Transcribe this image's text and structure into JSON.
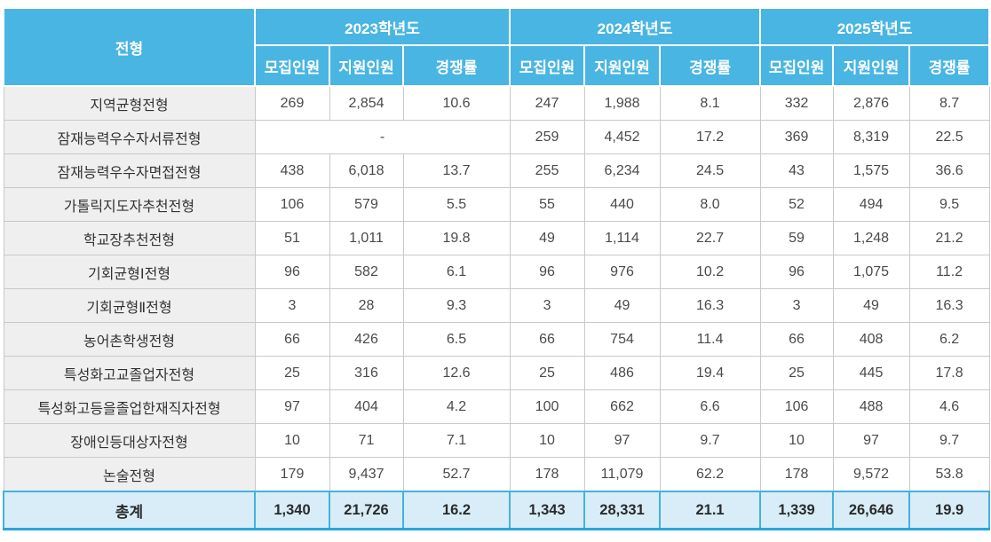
{
  "chart_data": {
    "type": "table",
    "corner_header": "전형",
    "year_groups": [
      {
        "label": "2023학년도",
        "sub_columns": [
          "모집인원",
          "지원인원",
          "경쟁률"
        ]
      },
      {
        "label": "2024학년도",
        "sub_columns": [
          "모집인원",
          "지원인원",
          "경쟁률"
        ]
      },
      {
        "label": "2025학년도",
        "sub_columns": [
          "모집인원",
          "지원인원",
          "경쟁률"
        ]
      }
    ],
    "rows": [
      {
        "label": "지역균형전형",
        "cells": [
          "269",
          "2,854",
          "10.6",
          "247",
          "1,988",
          "8.1",
          "332",
          "2,876",
          "8.7"
        ]
      },
      {
        "label": "잠재능력우수자서류전형",
        "merge": {
          "index": 0,
          "colspan": 3
        },
        "cells": [
          "-",
          "259",
          "4,452",
          "17.2",
          "369",
          "8,319",
          "22.5"
        ]
      },
      {
        "label": "잠재능력우수자면접전형",
        "cells": [
          "438",
          "6,018",
          "13.7",
          "255",
          "6,234",
          "24.5",
          "43",
          "1,575",
          "36.6"
        ]
      },
      {
        "label": "가톨릭지도자추천전형",
        "cells": [
          "106",
          "579",
          "5.5",
          "55",
          "440",
          "8.0",
          "52",
          "494",
          "9.5"
        ]
      },
      {
        "label": "학교장추천전형",
        "cells": [
          "51",
          "1,011",
          "19.8",
          "49",
          "1,114",
          "22.7",
          "59",
          "1,248",
          "21.2"
        ]
      },
      {
        "label": "기회균형Ⅰ전형",
        "cells": [
          "96",
          "582",
          "6.1",
          "96",
          "976",
          "10.2",
          "96",
          "1,075",
          "11.2"
        ]
      },
      {
        "label": "기회균형Ⅱ전형",
        "cells": [
          "3",
          "28",
          "9.3",
          "3",
          "49",
          "16.3",
          "3",
          "49",
          "16.3"
        ]
      },
      {
        "label": "농어촌학생전형",
        "cells": [
          "66",
          "426",
          "6.5",
          "66",
          "754",
          "11.4",
          "66",
          "408",
          "6.2"
        ]
      },
      {
        "label": "특성화고교졸업자전형",
        "cells": [
          "25",
          "316",
          "12.6",
          "25",
          "486",
          "19.4",
          "25",
          "445",
          "17.8"
        ]
      },
      {
        "label": "특성화고등을졸업한재직자전형",
        "cells": [
          "97",
          "404",
          "4.2",
          "100",
          "662",
          "6.6",
          "106",
          "488",
          "4.6"
        ]
      },
      {
        "label": "장애인등대상자전형",
        "cells": [
          "10",
          "71",
          "7.1",
          "10",
          "97",
          "9.7",
          "10",
          "97",
          "9.7"
        ]
      },
      {
        "label": "논술전형",
        "cells": [
          "179",
          "9,437",
          "52.7",
          "178",
          "11,079",
          "62.2",
          "178",
          "9,572",
          "53.8"
        ]
      }
    ],
    "total_row": {
      "label": "총계",
      "cells": [
        "1,340",
        "21,726",
        "16.2",
        "1,343",
        "28,331",
        "21.1",
        "1,339",
        "26,646",
        "19.9"
      ]
    },
    "colors": {
      "header_bg": "#49B5E2",
      "header_text": "#FFFFFF",
      "label_column_bg": "#EFEFEF",
      "cell_border": "#C9C9C9",
      "total_bg": "#D8EDF7",
      "total_border": "#44B1DE",
      "total_bottom_border": "#29A7DA"
    }
  }
}
